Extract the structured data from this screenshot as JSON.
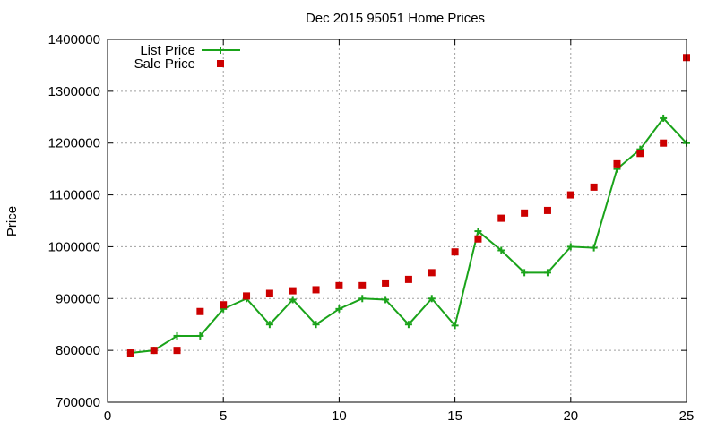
{
  "chart_data": {
    "type": "line",
    "title": "Dec 2015 95051 Home Prices",
    "xlabel": "",
    "ylabel": "Price",
    "xlim": [
      0,
      25
    ],
    "ylim": [
      700000,
      1400000
    ],
    "x_ticks": [
      "0",
      "5",
      "10",
      "15",
      "20",
      "25"
    ],
    "y_ticks": [
      "700000",
      "800000",
      "900000",
      "1000000",
      "1100000",
      "1200000",
      "1300000",
      "1400000"
    ],
    "grid": true,
    "legend_position": "top-left",
    "series": [
      {
        "name": "List Price",
        "style": "line-with-plus-markers",
        "color": "#1aa31a",
        "x": [
          1,
          2,
          3,
          4,
          5,
          6,
          7,
          8,
          9,
          10,
          11,
          12,
          13,
          14,
          15,
          16,
          17,
          18,
          19,
          20,
          21,
          22,
          23,
          24,
          25
        ],
        "values": [
          795000,
          800000,
          828000,
          828000,
          880000,
          900000,
          850000,
          898000,
          850000,
          880000,
          900000,
          898000,
          850000,
          900000,
          848000,
          1030000,
          993000,
          950000,
          950000,
          1000000,
          998000,
          1150000,
          1188000,
          1248000,
          1200000
        ]
      },
      {
        "name": "Sale Price",
        "style": "square-markers",
        "color": "#cc0000",
        "x": [
          1,
          2,
          3,
          4,
          5,
          6,
          7,
          8,
          9,
          10,
          11,
          12,
          13,
          14,
          15,
          16,
          17,
          18,
          19,
          20,
          21,
          22,
          23,
          24,
          25
        ],
        "values": [
          795000,
          800000,
          800000,
          875000,
          888000,
          905000,
          910000,
          915000,
          917000,
          925000,
          925000,
          930000,
          937000,
          950000,
          990000,
          1015000,
          1055000,
          1065000,
          1070000,
          1100000,
          1115000,
          1160000,
          1180000,
          1200000,
          1365000
        ]
      }
    ]
  }
}
